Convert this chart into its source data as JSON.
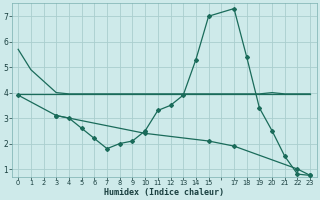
{
  "xlabel": "Humidex (Indice chaleur)",
  "bg_color": "#ceeaea",
  "grid_color": "#aacece",
  "line_color": "#1a6b5a",
  "xlim": [
    -0.5,
    23.5
  ],
  "ylim": [
    0.7,
    7.5
  ],
  "line1_x": [
    0,
    1,
    3,
    4,
    5,
    6,
    7,
    8,
    9,
    10,
    11,
    12,
    13,
    14,
    15,
    17,
    18,
    19,
    20,
    21,
    22,
    23
  ],
  "line1_y": [
    5.7,
    4.9,
    4.0,
    3.95,
    3.95,
    3.95,
    3.95,
    3.95,
    3.95,
    3.95,
    3.95,
    3.95,
    3.95,
    3.95,
    3.95,
    3.95,
    3.95,
    3.95,
    4.0,
    3.95,
    3.95,
    3.95
  ],
  "line2_x": [
    3,
    4,
    5,
    6,
    7,
    8,
    9,
    10,
    11,
    12,
    13,
    14,
    15,
    17,
    18,
    19,
    20,
    21,
    22,
    23
  ],
  "line2_y": [
    3.1,
    3.0,
    2.6,
    2.2,
    1.8,
    2.0,
    2.1,
    2.5,
    3.3,
    3.5,
    3.9,
    5.3,
    7.0,
    7.3,
    5.4,
    3.4,
    2.5,
    1.5,
    0.8,
    0.75
  ],
  "line3_x": [
    0,
    23
  ],
  "line3_y": [
    3.95,
    3.95
  ],
  "line4_x": [
    0,
    3,
    10,
    15,
    17,
    22,
    23
  ],
  "line4_y": [
    3.9,
    3.1,
    2.4,
    2.1,
    1.9,
    1.0,
    0.75
  ],
  "xtick_positions": [
    0,
    1,
    2,
    3,
    4,
    5,
    6,
    7,
    8,
    9,
    10,
    11,
    12,
    13,
    14,
    15,
    16,
    17,
    18,
    19,
    20,
    21,
    22,
    23
  ],
  "xtick_labels": [
    "0",
    "1",
    "2",
    "3",
    "4",
    "5",
    "6",
    "7",
    "8",
    "9",
    "10",
    "11",
    "12",
    "13",
    "14",
    "15",
    "",
    "17",
    "18",
    "19",
    "20",
    "21",
    "22",
    "23"
  ],
  "ytick_positions": [
    1,
    2,
    3,
    4,
    5,
    6,
    7
  ],
  "ytick_labels": [
    "1",
    "2",
    "3",
    "4",
    "5",
    "6",
    "7"
  ]
}
